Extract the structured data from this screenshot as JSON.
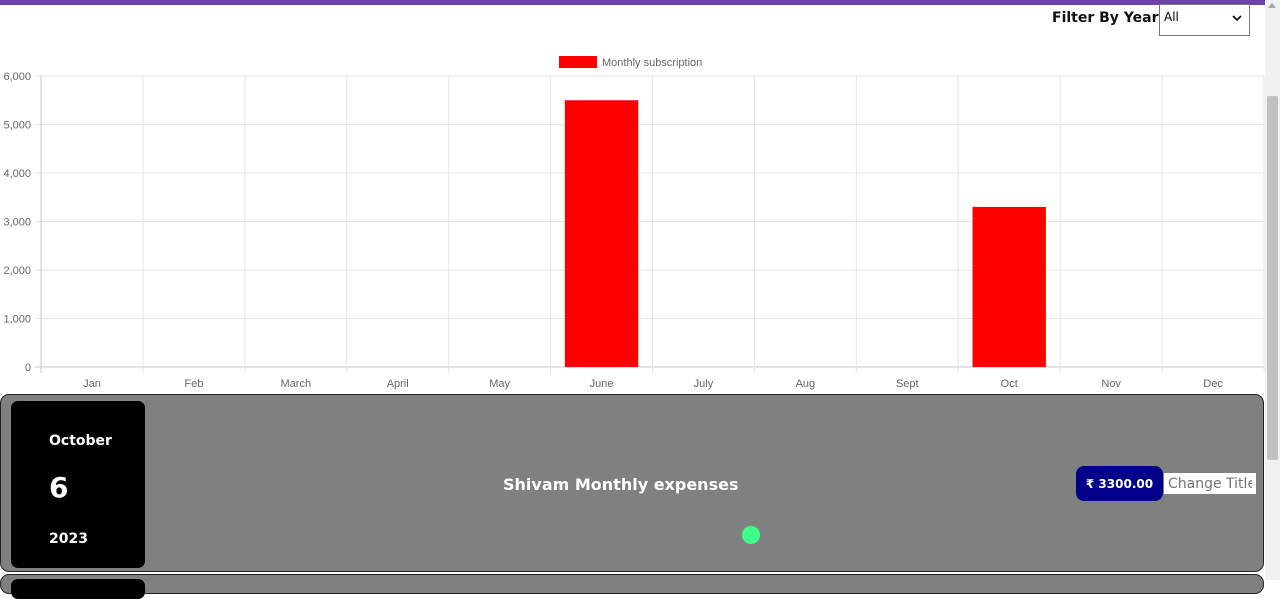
{
  "filter": {
    "label": "Filter By Year",
    "selected": "All"
  },
  "chart_data": {
    "type": "bar",
    "categories": [
      "Jan",
      "Feb",
      "March",
      "April",
      "May",
      "June",
      "July",
      "Aug",
      "Sept",
      "Oct",
      "Nov",
      "Dec"
    ],
    "series": [
      {
        "name": "Monthly subscription",
        "color": "#ff0000",
        "values": [
          0,
          0,
          0,
          0,
          0,
          5500,
          0,
          0,
          0,
          3300,
          0,
          0
        ]
      }
    ],
    "yticks": [
      "0",
      "1,000",
      "2,000",
      "3,000",
      "4,000",
      "5,000",
      "6,000"
    ],
    "ylim": [
      0,
      6000
    ],
    "grid": true,
    "legend_position": "top"
  },
  "expense_card": {
    "month": "October",
    "day": "6",
    "year": "2023",
    "title": "Shivam Monthly expenses",
    "amount": "₹ 3300.00",
    "change_title_placeholder": "Change Title",
    "status_color": "#3dff8a"
  }
}
